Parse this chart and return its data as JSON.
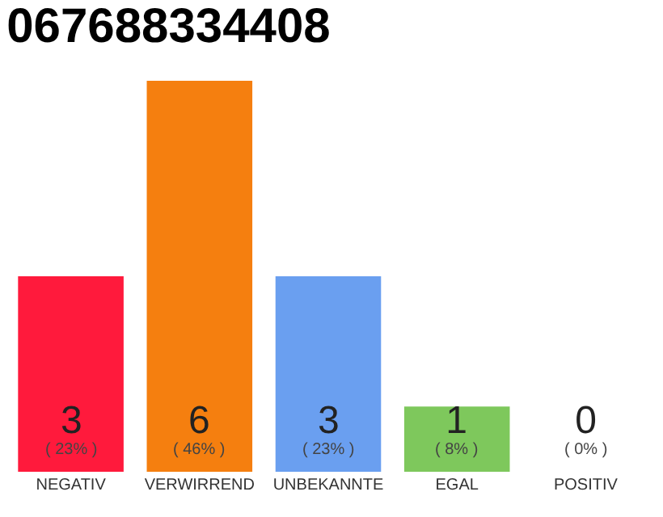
{
  "chart_data": {
    "type": "bar",
    "title": "067688334408",
    "categories": [
      "NEGATIV",
      "VERWIRREND",
      "UNBEKANNTE",
      "EGAL",
      "POSITIV"
    ],
    "values": [
      3,
      6,
      3,
      1,
      0
    ],
    "colors": [
      "#ff1a3c",
      "#f57f0f",
      "#6a9ff0",
      "#7ec85c",
      "#dddddd"
    ],
    "value_labels": [
      "3\n( 23% )",
      "6\n( 46% )",
      "3\n( 23% )",
      "1\n( 8% )",
      "0\n( 0% )"
    ],
    "tick_labels": "x"
  }
}
